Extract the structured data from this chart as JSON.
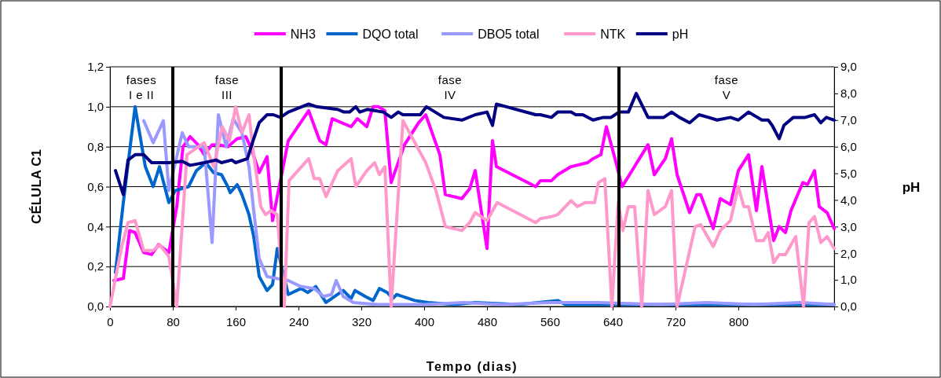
{
  "chart_data": {
    "type": "line",
    "xlabel": "Tempo (dias)",
    "ylabel": "CÉLULA C1",
    "y2label": "pH",
    "xlim": [
      0,
      922
    ],
    "xticks": [
      0,
      80,
      160,
      240,
      320,
      400,
      480,
      560,
      640,
      720,
      800
    ],
    "ylim": [
      0,
      1.2
    ],
    "yticks": [
      {
        "value": 0,
        "label": "0,0"
      },
      {
        "value": 0.2,
        "label": "0,2"
      },
      {
        "value": 0.4,
        "label": "0,4"
      },
      {
        "value": 0.6,
        "label": "0,6"
      },
      {
        "value": 0.8,
        "label": "0,8"
      },
      {
        "value": 1,
        "label": "1,0"
      },
      {
        "value": 1.2,
        "label": "1,2"
      }
    ],
    "y2lim": [
      0,
      9
    ],
    "y2ticks": [
      {
        "value": 0,
        "label": "0,0"
      },
      {
        "value": 1,
        "label": "1,0"
      },
      {
        "value": 2,
        "label": "2,0"
      },
      {
        "value": 3,
        "label": "3,0"
      },
      {
        "value": 4,
        "label": "4,0"
      },
      {
        "value": 5,
        "label": "5,0"
      },
      {
        "value": 6,
        "label": "6,0"
      },
      {
        "value": 7,
        "label": "7,0"
      },
      {
        "value": 8,
        "label": "8,0"
      },
      {
        "value": 9,
        "label": "9,0"
      }
    ],
    "grid": "y",
    "legend": "top",
    "marker": "none",
    "line_style": "solid",
    "series": [
      {
        "name": "NH3",
        "color": "#ff00ff",
        "x": [
          5,
          17,
          25,
          32,
          43,
          53,
          62,
          75,
          85,
          93,
          102,
          112,
          120,
          130,
          138,
          150,
          162,
          173,
          180,
          190,
          200,
          207,
          227,
          253,
          267,
          275,
          283,
          307,
          315,
          327,
          335,
          342,
          350,
          358,
          375,
          393,
          402,
          420,
          427,
          448,
          458,
          465,
          480,
          487,
          492,
          542,
          548,
          562,
          570,
          587,
          608,
          615,
          625,
          632,
          643,
          652,
          685,
          693,
          707,
          715,
          722,
          738,
          747,
          752,
          768,
          777,
          790,
          800,
          813,
          823,
          830,
          845,
          852,
          860,
          867,
          882,
          888,
          897,
          903,
          913,
          922
        ],
        "values": [
          0.13,
          0.14,
          0.38,
          0.37,
          0.27,
          0.26,
          0.31,
          0.27,
          0.5,
          0.8,
          0.85,
          0.81,
          0.76,
          0.81,
          0.81,
          0.8,
          0.84,
          0.85,
          0.79,
          0.67,
          0.75,
          0.43,
          0.83,
          0.98,
          0.83,
          0.81,
          0.94,
          0.9,
          0.94,
          0.9,
          1.0,
          1.0,
          0.98,
          0.62,
          0.81,
          0.92,
          0.96,
          0.76,
          0.56,
          0.54,
          0.59,
          0.68,
          0.29,
          0.83,
          0.7,
          0.6,
          0.63,
          0.63,
          0.66,
          0.7,
          0.72,
          0.74,
          0.76,
          0.9,
          0.74,
          0.6,
          0.81,
          0.66,
          0.74,
          0.84,
          0.66,
          0.47,
          0.56,
          0.56,
          0.39,
          0.54,
          0.51,
          0.68,
          0.76,
          0.48,
          0.7,
          0.33,
          0.4,
          0.37,
          0.48,
          0.62,
          0.61,
          0.68,
          0.5,
          0.47,
          0.39
        ]
      },
      {
        "name": "DQO total",
        "color": "#0066cc",
        "x": [
          7,
          17,
          32,
          45,
          55,
          63,
          75,
          83,
          100,
          110,
          122,
          132,
          142,
          150,
          153,
          162,
          168,
          177,
          183,
          190,
          200,
          207,
          213,
          227,
          243,
          252,
          262,
          275,
          297,
          307,
          312,
          325,
          335,
          343,
          353,
          360,
          365,
          388,
          405,
          438,
          465,
          520,
          570,
          580,
          650,
          700,
          760,
          820,
          880,
          922
        ],
        "values": [
          0.17,
          0.52,
          1.0,
          0.7,
          0.6,
          0.7,
          0.52,
          0.58,
          0.6,
          0.68,
          0.72,
          0.67,
          0.66,
          0.6,
          0.57,
          0.61,
          0.56,
          0.46,
          0.35,
          0.15,
          0.08,
          0.11,
          0.29,
          0.06,
          0.09,
          0.07,
          0.1,
          0.02,
          0.08,
          0.04,
          0.08,
          0.05,
          0.03,
          0.09,
          0.07,
          0.04,
          0.06,
          0.03,
          0.02,
          0.01,
          0.02,
          0.01,
          0.03,
          0.01,
          0.01,
          0.01,
          0.01,
          0.01,
          0.01,
          0.01
        ]
      },
      {
        "name": "DBO5 total",
        "color": "#9999ff",
        "x": [
          43,
          55,
          68,
          75,
          92,
          100,
          120,
          130,
          138,
          148,
          157,
          168,
          177,
          183,
          190,
          200,
          213,
          227,
          243,
          260,
          272,
          282,
          288,
          297,
          310,
          340,
          400,
          450,
          500,
          560,
          620,
          700,
          760,
          820,
          880,
          922
        ],
        "values": [
          0.93,
          0.82,
          0.93,
          0.58,
          0.87,
          0.8,
          0.8,
          0.32,
          0.96,
          0.8,
          0.94,
          0.87,
          0.7,
          0.48,
          0.24,
          0.15,
          0.14,
          0.13,
          0.1,
          0.09,
          0.05,
          0.06,
          0.13,
          0.05,
          0.02,
          0.01,
          0.01,
          0.02,
          0.01,
          0.02,
          0.02,
          0.01,
          0.02,
          0.01,
          0.02,
          0.01
        ]
      },
      {
        "name": "NTK",
        "color": "#ff99cc",
        "x": [
          0,
          15,
          23,
          32,
          43,
          55,
          63,
          75,
          85,
          98,
          120,
          132,
          143,
          152,
          160,
          168,
          177,
          182,
          192,
          198,
          205,
          213,
          222,
          228,
          253,
          260,
          267,
          275,
          290,
          307,
          313,
          327,
          337,
          343,
          350,
          358,
          373,
          402,
          415,
          427,
          448,
          458,
          465,
          480,
          493,
          542,
          548,
          562,
          570,
          587,
          595,
          605,
          617,
          622,
          630,
          639,
          647,
          653,
          660,
          668,
          677,
          685,
          693,
          707,
          715,
          722,
          745,
          752,
          768,
          777,
          790,
          800,
          807,
          813,
          823,
          832,
          838,
          845,
          852,
          860,
          873,
          883,
          890,
          897,
          905,
          913,
          922
        ],
        "values": [
          0,
          0.3,
          0.42,
          0.43,
          0.28,
          0.28,
          0.31,
          0.25,
          0,
          0.76,
          0.82,
          0.7,
          0.9,
          0.83,
          1.0,
          0.87,
          0.96,
          0.79,
          0.5,
          0.46,
          0.48,
          0.46,
          0,
          0.63,
          0.74,
          0.64,
          0.64,
          0.55,
          0.68,
          0.74,
          0.6,
          0.68,
          0.72,
          0.66,
          0.7,
          0,
          0.93,
          0.72,
          0.58,
          0.4,
          0.38,
          0.42,
          0.47,
          0.43,
          0.52,
          0.42,
          0.44,
          0.45,
          0.46,
          0.53,
          0.5,
          0.52,
          0.52,
          0.62,
          0.64,
          0,
          0.52,
          0.38,
          0.5,
          0.5,
          0,
          0.58,
          0.46,
          0.5,
          0.58,
          0,
          0.4,
          0.41,
          0.3,
          0.38,
          0.43,
          0.6,
          0.5,
          0.5,
          0.33,
          0.33,
          0.37,
          0.22,
          0.26,
          0.26,
          0.35,
          0,
          0.42,
          0.45,
          0.32,
          0.35,
          0.29
        ]
      },
      {
        "name": "pH",
        "color": "#000080",
        "axis": "y2",
        "x": [
          7,
          17,
          23,
          32,
          43,
          53,
          75,
          92,
          102,
          120,
          135,
          142,
          155,
          160,
          175,
          183,
          190,
          200,
          208,
          217,
          227,
          253,
          263,
          290,
          298,
          305,
          313,
          318,
          328,
          348,
          358,
          367,
          373,
          395,
          403,
          425,
          448,
          465,
          480,
          487,
          492,
          542,
          548,
          562,
          570,
          587,
          593,
          602,
          615,
          628,
          638,
          648,
          660,
          670,
          685,
          705,
          715,
          725,
          738,
          750,
          762,
          773,
          790,
          800,
          813,
          830,
          838,
          843,
          852,
          858,
          870,
          885,
          897,
          905,
          912,
          922
        ],
        "values": [
          5.1,
          4.2,
          5.5,
          5.7,
          5.7,
          5.4,
          5.4,
          5.45,
          5.3,
          5.4,
          5.5,
          5.4,
          5.5,
          5.4,
          5.55,
          6.3,
          6.9,
          7.2,
          7.2,
          7.1,
          7.3,
          7.6,
          7.5,
          7.4,
          7.3,
          7.3,
          7.5,
          7.3,
          7.4,
          7.3,
          7.1,
          7.3,
          7.2,
          7.2,
          7.5,
          7.1,
          7.0,
          7.2,
          7.3,
          6.8,
          7.6,
          7.2,
          7.2,
          7.1,
          7.3,
          7.3,
          7.2,
          7.2,
          7.0,
          7.1,
          7.1,
          7.3,
          7.3,
          8.0,
          7.1,
          7.1,
          7.3,
          7.1,
          6.9,
          7.2,
          7.1,
          7.0,
          7.1,
          7.0,
          7.3,
          7.0,
          7.0,
          6.8,
          6.3,
          6.8,
          7.1,
          7.1,
          7.2,
          6.9,
          7.1,
          7.0
        ]
      }
    ],
    "ref_lines": [
      {
        "axis": "x",
        "value": 80,
        "color": "#000000"
      },
      {
        "axis": "x",
        "value": 218,
        "color": "#000000"
      },
      {
        "axis": "x",
        "value": 648,
        "color": "#000000"
      }
    ],
    "annotations": [
      "fases I e II",
      "fase III",
      "fase IV",
      "fase V"
    ]
  }
}
